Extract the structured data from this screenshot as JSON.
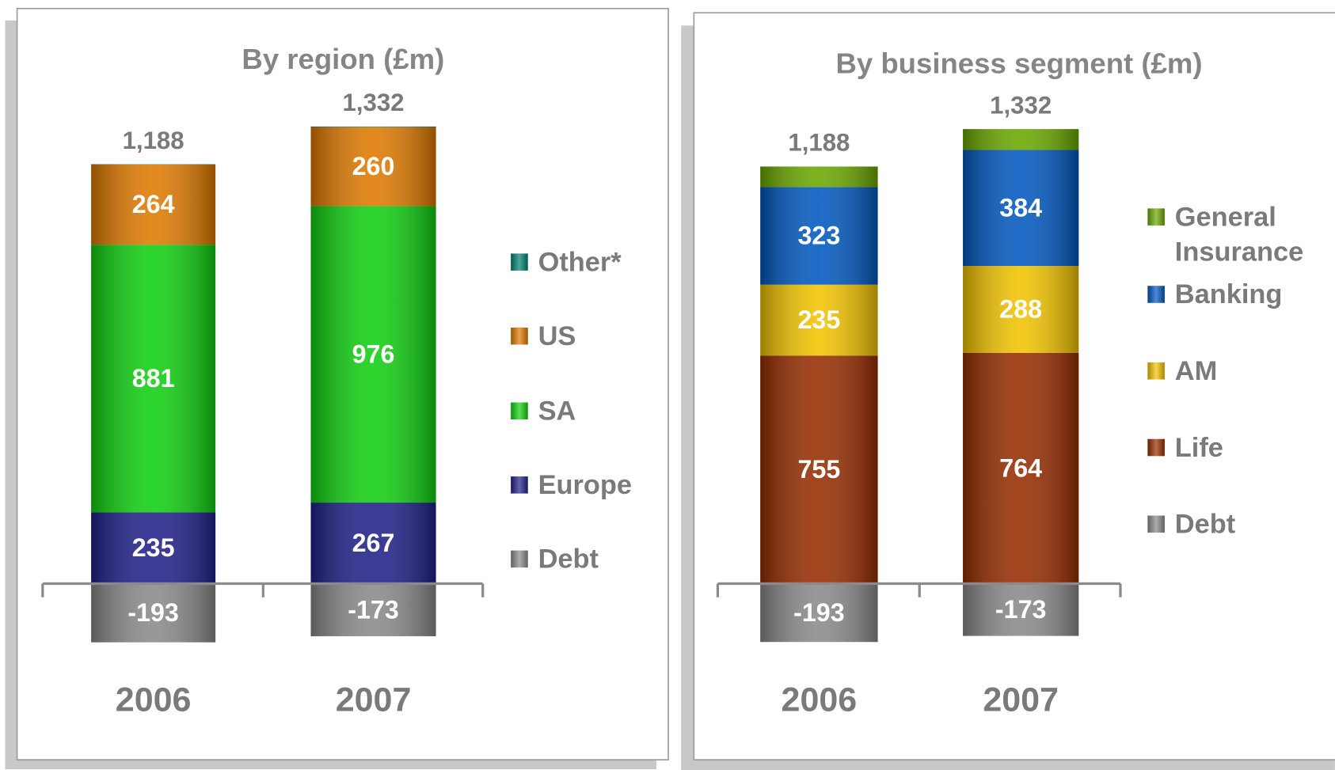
{
  "chart_data": [
    {
      "type": "stacked_bar",
      "title": "By region (£m)",
      "categories": [
        "2006",
        "2007"
      ],
      "series": [
        {
          "name": "Other*",
          "color": "#008070",
          "values": [
            1,
            2
          ]
        },
        {
          "name": "US",
          "color": "#e07a00",
          "values": [
            264,
            260
          ]
        },
        {
          "name": "SA",
          "color": "#10d010",
          "values": [
            881,
            976
          ]
        },
        {
          "name": "Europe",
          "color": "#20208a",
          "values": [
            235,
            267
          ]
        },
        {
          "name": "Debt",
          "color": "#8a8a8a",
          "values": [
            -193,
            -173
          ]
        }
      ],
      "total_values": [
        1188,
        1332
      ],
      "total_labels": [
        "1,188",
        "1,332"
      ]
    },
    {
      "type": "stacked_bar",
      "title": "By business segment (£m)",
      "categories": [
        "2006",
        "2007"
      ],
      "series": [
        {
          "name": "General Insurance",
          "color": "#6aa800",
          "values": [
            68,
            69
          ]
        },
        {
          "name": "Banking",
          "color": "#0058c0",
          "values": [
            323,
            384
          ]
        },
        {
          "name": "AM",
          "color": "#f2c400",
          "values": [
            235,
            288
          ]
        },
        {
          "name": "Life",
          "color": "#962c00",
          "values": [
            755,
            764
          ]
        },
        {
          "name": "Debt",
          "color": "#8a8a8a",
          "values": [
            -193,
            -173
          ]
        }
      ],
      "total_values": [
        1188,
        1332
      ],
      "total_labels": [
        "1,188",
        "1,332"
      ]
    }
  ]
}
